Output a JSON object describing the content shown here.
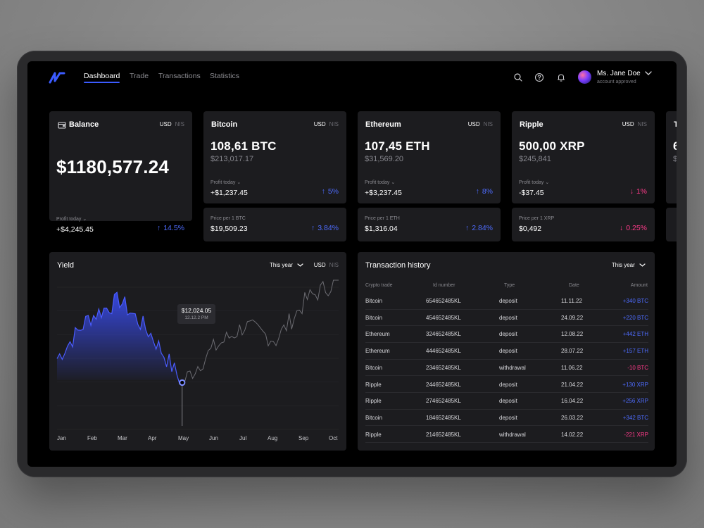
{
  "nav": {
    "links": [
      "Dashboard",
      "Trade",
      "Transactions",
      "Statistics"
    ],
    "active": "Dashboard"
  },
  "user": {
    "name": "Ms. Jane Doe",
    "status": "account approved"
  },
  "icons": [
    "logo-icon",
    "search-icon",
    "help-icon",
    "bell-icon",
    "chevron-down-icon",
    "wallet-icon"
  ],
  "colors": {
    "accent": "#3b5bff",
    "positive": "#4e6cff",
    "negative": "#ff3b8a",
    "card": "#1c1c1f",
    "background": "#000000"
  },
  "currency": {
    "primary": "USD",
    "secondary": "NIS"
  },
  "balance": {
    "title": "Balance",
    "amount": "$1180,577.24",
    "profit_label": "Profit today",
    "profit_value": "+$4,245.45",
    "change": "14.5%",
    "trend": "up"
  },
  "coins": [
    {
      "name": "Bitcoin",
      "amount": "108,61 BTC",
      "value": "$213,017.17",
      "profit_label": "Profit today",
      "profit_value": "+$1,237.45",
      "change": "5%",
      "trend": "up",
      "price_label": "Price per 1 BTC",
      "price_value": "$19,509.23",
      "price_change": "3.84%",
      "price_trend": "up"
    },
    {
      "name": "Ethereum",
      "amount": "107,45 ETH",
      "value": "$31,569.20",
      "profit_label": "Profit today",
      "profit_value": "+$3,237.45",
      "change": "8%",
      "trend": "up",
      "price_label": "Price per 1 ETH",
      "price_value": "$1,316.04",
      "price_change": "2.84%",
      "price_trend": "up"
    },
    {
      "name": "Ripple",
      "amount": "500,00 XRP",
      "value": "$245,841",
      "profit_label": "Profit today",
      "profit_value": "-$37.45",
      "change": "1%",
      "trend": "down",
      "price_label": "Price per 1 XRP",
      "price_value": "$0,492",
      "price_change": "0.25%",
      "price_trend": "down"
    }
  ],
  "partial_card": {
    "title": "T",
    "amount": "6",
    "value": "$"
  },
  "yield": {
    "title": "Yield",
    "period": "This year",
    "tooltip_value": "$12,024.05",
    "tooltip_date": "12.12.2 PM",
    "months": [
      "Jan",
      "Feb",
      "Mar",
      "Apr",
      "May",
      "Jun",
      "Jul",
      "Aug",
      "Sep",
      "Oct"
    ]
  },
  "chart_data": {
    "type": "area",
    "title": "Yield",
    "x": [
      "Jan",
      "Feb",
      "Mar",
      "Apr",
      "May",
      "Jun",
      "Jul",
      "Aug",
      "Sep",
      "Oct"
    ],
    "series": [
      {
        "values": [
          0.45,
          0.73,
          0.86,
          0.62,
          0.28,
          0.52,
          0.68,
          0.58,
          0.87,
          1.0
        ]
      }
    ],
    "highlight": {
      "x": "May",
      "label": "$12,024.05"
    },
    "ylim": [
      0,
      1
    ],
    "grid": true
  },
  "transactions": {
    "title": "Transaction history",
    "period": "This year",
    "columns": [
      "Crypto trade",
      "Id number",
      "Type",
      "Date",
      "Amount"
    ],
    "rows": [
      {
        "coin": "Bitcoin",
        "id": "654652485KL",
        "type": "deposit",
        "date": "11.11.22",
        "amount": "+340 BTC",
        "sign": "pos"
      },
      {
        "coin": "Bitcoin",
        "id": "454652485KL",
        "type": "deposit",
        "date": "24.09.22",
        "amount": "+220 BTC",
        "sign": "pos"
      },
      {
        "coin": "Ethereum",
        "id": "324652485KL",
        "type": "deposit",
        "date": "12.08.22",
        "amount": "+442 ETH",
        "sign": "pos"
      },
      {
        "coin": "Ethereum",
        "id": "444652485KL",
        "type": "deposit",
        "date": "28.07.22",
        "amount": "+157 ETH",
        "sign": "pos"
      },
      {
        "coin": "Bitcoin",
        "id": "234652485KL",
        "type": "withdrawal",
        "date": "11.06.22",
        "amount": "-10 BTC",
        "sign": "neg"
      },
      {
        "coin": "Ripple",
        "id": "244652485KL",
        "type": "deposit",
        "date": "21.04.22",
        "amount": "+130 XRP",
        "sign": "pos"
      },
      {
        "coin": "Ripple",
        "id": "274652485KL",
        "type": "deposit",
        "date": "16.04.22",
        "amount": "+256 XRP",
        "sign": "pos"
      },
      {
        "coin": "Bitcoin",
        "id": "184652485KL",
        "type": "deposit",
        "date": "26.03.22",
        "amount": "+342 BTC",
        "sign": "pos"
      },
      {
        "coin": "Ripple",
        "id": "214652485KL",
        "type": "withdrawal",
        "date": "14.02.22",
        "amount": "-221 XRP",
        "sign": "neg"
      }
    ]
  }
}
